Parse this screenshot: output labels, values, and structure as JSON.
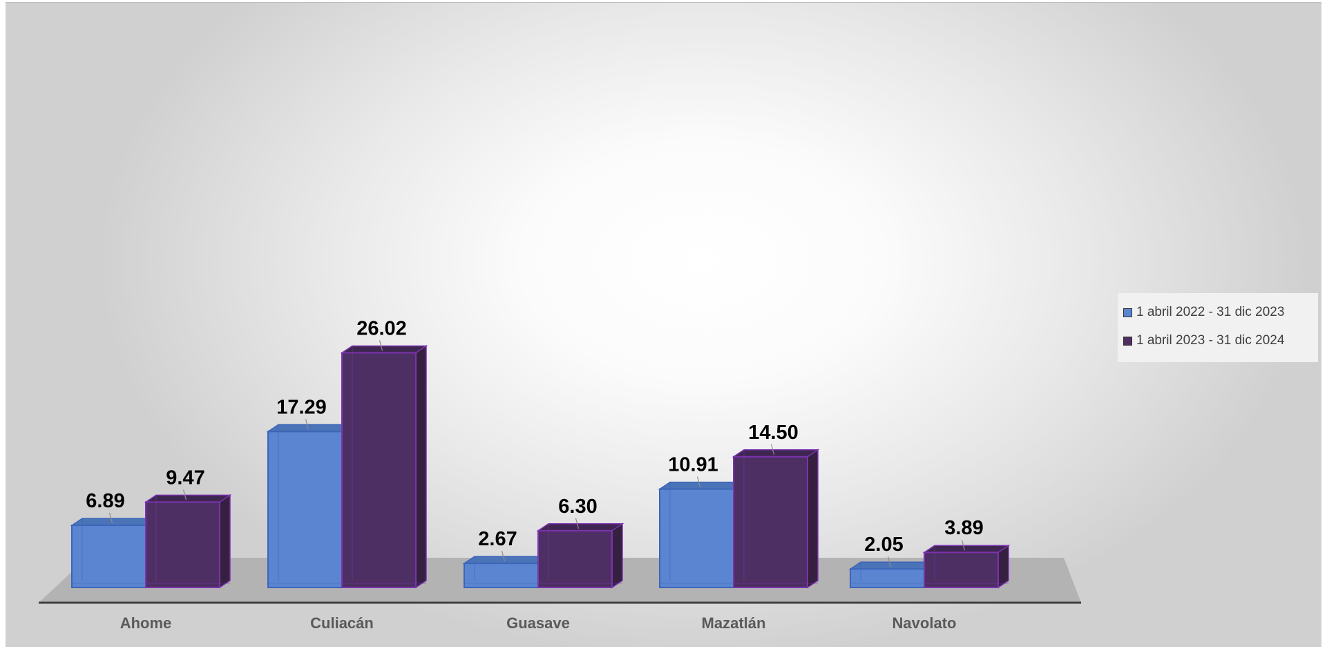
{
  "chart_data": {
    "type": "bar",
    "title": "",
    "xlabel": "",
    "ylabel": "",
    "categories": [
      "Ahome",
      "Culiacán",
      "Guasave",
      "Mazatlán",
      "Navolato"
    ],
    "series": [
      {
        "name": "1 abril 2022 - 31 dic 2023",
        "values": [
          6.89,
          17.29,
          2.67,
          10.91,
          2.05
        ],
        "labels": [
          "6.89",
          "17.29",
          "2.67",
          "10.91",
          "2.05"
        ],
        "color": "#5b85d0"
      },
      {
        "name": "1 abril 2023 - 31 dic 2024",
        "values": [
          9.47,
          26.02,
          6.3,
          14.5,
          3.89
        ],
        "labels": [
          "9.47",
          "26.02",
          "6.30",
          "14.50",
          "3.89"
        ],
        "color": "#4e2f63"
      }
    ],
    "ylim": [
      0,
      30
    ],
    "grid": false,
    "legend_position": "right",
    "style": "3d-clustered-column"
  }
}
